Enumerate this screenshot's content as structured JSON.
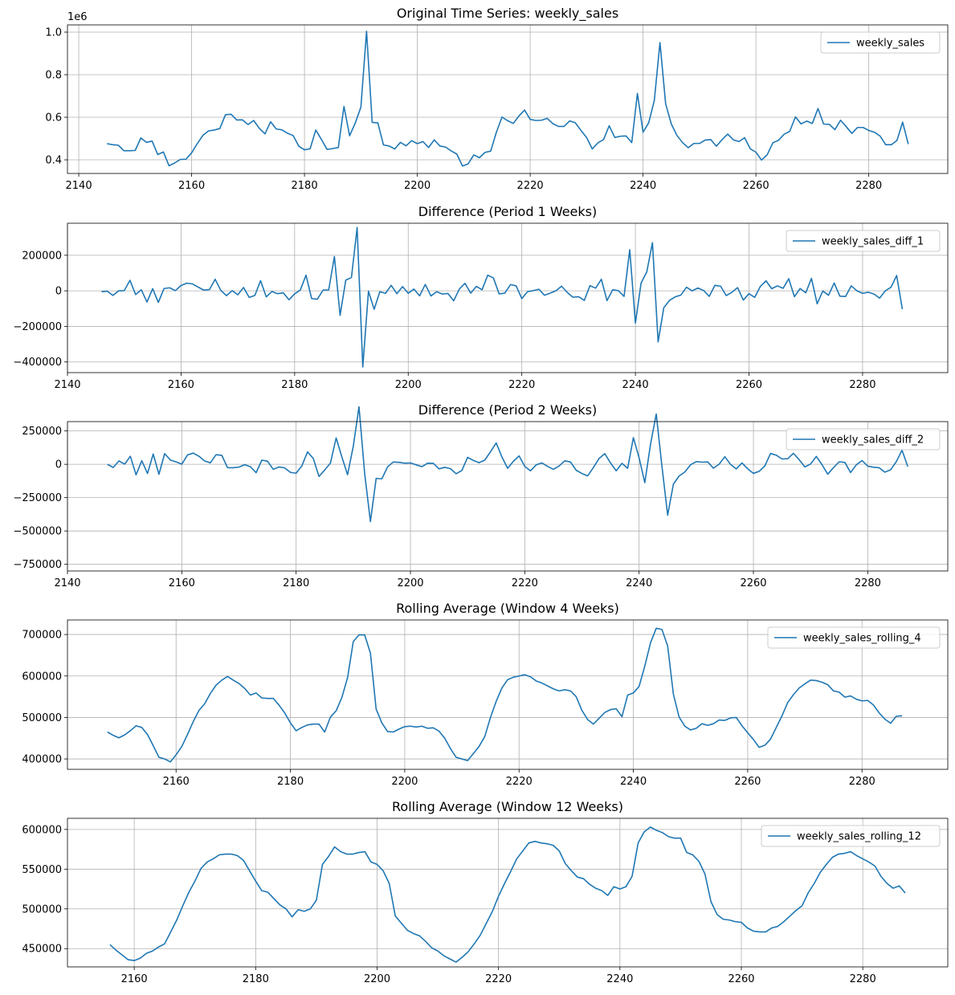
{
  "chart_data": [
    {
      "type": "line",
      "title": "Original Time Series: weekly_sales",
      "offset_label": "1e6",
      "xlim": [
        2138,
        2294
      ],
      "xticks": [
        2140,
        2160,
        2180,
        2200,
        2220,
        2240,
        2260,
        2280
      ],
      "ylim": [
        0.336,
        1.034
      ],
      "yticks": [
        0.4,
        0.6,
        0.8,
        1.0
      ],
      "ytick_labels": [
        "0.4",
        "0.6",
        "0.8",
        "1.0"
      ],
      "legend": "top-right",
      "series": [
        {
          "name": "weekly_sales",
          "x_start": 2145,
          "values": [
            0.476,
            0.471,
            0.469,
            0.443,
            0.443,
            0.444,
            0.503,
            0.482,
            0.488,
            0.425,
            0.437,
            0.372,
            0.385,
            0.402,
            0.403,
            0.433,
            0.476,
            0.515,
            0.536,
            0.54,
            0.547,
            0.612,
            0.614,
            0.587,
            0.588,
            0.566,
            0.585,
            0.548,
            0.522,
            0.579,
            0.545,
            0.541,
            0.525,
            0.514,
            0.464,
            0.447,
            0.452,
            0.54,
            0.496,
            0.449,
            0.453,
            0.458,
            0.651,
            0.513,
            0.573,
            0.648,
            1.004,
            0.576,
            0.574,
            0.47,
            0.465,
            0.451,
            0.482,
            0.466,
            0.49,
            0.476,
            0.486,
            0.458,
            0.494,
            0.465,
            0.46,
            0.442,
            0.427,
            0.371,
            0.381,
            0.423,
            0.41,
            0.435,
            0.441,
            0.529,
            0.601,
            0.584,
            0.571,
            0.606,
            0.634,
            0.59,
            0.585,
            0.586,
            0.595,
            0.57,
            0.557,
            0.557,
            0.583,
            0.574,
            0.538,
            0.505,
            0.451,
            0.48,
            0.495,
            0.56,
            0.505,
            0.511,
            0.512,
            0.481,
            0.712,
            0.53,
            0.574,
            0.68,
            0.951,
            0.664,
            0.569,
            0.515,
            0.481,
            0.457,
            0.477,
            0.477,
            0.493,
            0.495,
            0.464,
            0.495,
            0.521,
            0.494,
            0.486,
            0.504,
            0.452,
            0.436,
            0.399,
            0.424,
            0.48,
            0.492,
            0.52,
            0.534,
            0.602,
            0.569,
            0.582,
            0.571,
            0.641,
            0.568,
            0.567,
            0.542,
            0.586,
            0.556,
            0.524,
            0.552,
            0.552,
            0.538,
            0.53,
            0.512,
            0.471,
            0.471,
            0.491,
            0.577,
            0.474
          ]
        }
      ]
    },
    {
      "type": "line",
      "title": "Difference (Period 1 Weeks)",
      "xlim": [
        2140,
        2295
      ],
      "xticks": [
        2140,
        2160,
        2180,
        2200,
        2220,
        2240,
        2260,
        2280
      ],
      "ylim": [
        -460000,
        380000
      ],
      "yticks": [
        -400000,
        -200000,
        0,
        200000
      ],
      "ytick_labels": [
        "−400000",
        "−200000",
        "0",
        "200000"
      ],
      "legend": "top-right",
      "series": [
        {
          "name": "weekly_sales_diff_1",
          "x_start": 2146,
          "values": [
            -5000,
            -2000,
            -26000,
            0,
            1000,
            59000,
            -21000,
            6000,
            -63000,
            12000,
            -65000,
            13000,
            17000,
            1000,
            30000,
            43000,
            39000,
            21000,
            4000,
            7000,
            65000,
            2000,
            -27000,
            1000,
            -22000,
            19000,
            -37000,
            -26000,
            57000,
            -34000,
            -4000,
            -16000,
            -11000,
            -50000,
            -17000,
            5000,
            88000,
            -44000,
            -47000,
            4000,
            5000,
            193000,
            -138000,
            60000,
            75000,
            356000,
            -428000,
            -2000,
            -104000,
            -5000,
            -14000,
            31000,
            -16000,
            24000,
            -14000,
            10000,
            -28000,
            36000,
            -29000,
            -5000,
            -18000,
            -15000,
            -56000,
            10000,
            42000,
            -13000,
            25000,
            6000,
            88000,
            72000,
            -17000,
            -13000,
            35000,
            28000,
            -44000,
            -5000,
            1000,
            9000,
            -25000,
            -13000,
            0,
            26000,
            -9000,
            -36000,
            -33000,
            -54000,
            29000,
            15000,
            65000,
            -55000,
            6000,
            1000,
            -31000,
            231000,
            -182000,
            44000,
            106000,
            271000,
            -287000,
            -95000,
            -54000,
            -34000,
            -24000,
            20000,
            0,
            16000,
            2000,
            -31000,
            31000,
            26000,
            -27000,
            -8000,
            18000,
            -52000,
            -16000,
            -37000,
            25000,
            56000,
            12000,
            28000,
            14000,
            68000,
            -33000,
            13000,
            -11000,
            70000,
            -73000,
            -1000,
            -25000,
            44000,
            -30000,
            -32000,
            28000,
            0,
            -14000,
            -8000,
            -18000,
            -41000,
            0,
            20000,
            86000,
            -103000
          ]
        }
      ]
    },
    {
      "type": "line",
      "title": "Difference (Period 2 Weeks)",
      "xlim": [
        2140,
        2294
      ],
      "xticks": [
        2140,
        2160,
        2180,
        2200,
        2220,
        2240,
        2260,
        2280
      ],
      "ylim": [
        -800000,
        320000
      ],
      "yticks": [
        -750000,
        -500000,
        -250000,
        0,
        250000
      ],
      "ytick_labels": [
        "−750000",
        "−500000",
        "−250000",
        "0",
        "250000"
      ],
      "legend": "top-right",
      "series": [
        {
          "name": "weekly_sales_diff_2",
          "x_start": 2147,
          "values": [
            0,
            -24000,
            25000,
            1000,
            60000,
            -79000,
            27000,
            -69000,
            77000,
            -75000,
            80000,
            32000,
            18000,
            1000,
            70000,
            84000,
            60000,
            25000,
            11000,
            72000,
            67000,
            -25000,
            -26000,
            -21000,
            -3000,
            -18000,
            -63000,
            31000,
            23000,
            -38000,
            -20000,
            -27000,
            -61000,
            -67000,
            -12000,
            93000,
            44000,
            -91000,
            -43000,
            9000,
            198000,
            55000,
            -78000,
            135000,
            431000,
            -72000,
            -430000,
            -106000,
            -109000,
            -19000,
            17000,
            15000,
            8000,
            10000,
            -4000,
            -18000,
            8000,
            7000,
            -34000,
            -23000,
            -33000,
            -71000,
            -46000,
            52000,
            29000,
            12000,
            31000,
            94000,
            160000,
            55000,
            -30000,
            22000,
            63000,
            -16000,
            -49000,
            -4000,
            10000,
            -16000,
            -38000,
            -13000,
            26000,
            17000,
            -45000,
            -69000,
            -87000,
            -25000,
            44000,
            80000,
            10000,
            -49000,
            7000,
            -30000,
            200000,
            49000,
            -138000,
            150000,
            377000,
            -16000,
            -382000,
            -149000,
            -88000,
            -58000,
            -4000,
            20000,
            16000,
            18000,
            -29000,
            0,
            57000,
            -1000,
            -35000,
            10000,
            -34000,
            -68000,
            -53000,
            -12000,
            81000,
            68000,
            40000,
            42000,
            82000,
            35000,
            -20000,
            2000,
            59000,
            -3000,
            -74000,
            -26000,
            19000,
            14000,
            -62000,
            -4000,
            28000,
            -14000,
            -22000,
            -26000,
            -59000,
            -41000,
            20000,
            106000,
            -17000
          ]
        }
      ]
    },
    {
      "type": "line",
      "title": "Rolling Average (Window 4 Weeks)",
      "xlim": [
        2141,
        2295
      ],
      "xticks": [
        2160,
        2180,
        2200,
        2220,
        2240,
        2260,
        2280
      ],
      "ylim": [
        375000,
        735000
      ],
      "yticks": [
        400000,
        500000,
        600000,
        700000
      ],
      "ytick_labels": [
        "400000",
        "500000",
        "600000",
        "700000"
      ],
      "legend": "top-right",
      "series": [
        {
          "name": "weekly_sales_rolling_4",
          "x_start": 2148,
          "values": [
            465000,
            457000,
            451000,
            458000,
            468000,
            480000,
            476000,
            459000,
            432000,
            404000,
            400000,
            393000,
            410000,
            430000,
            459000,
            490000,
            517000,
            533000,
            558000,
            578000,
            590000,
            599000,
            590000,
            582000,
            570000,
            554000,
            559000,
            547000,
            546000,
            546000,
            530000,
            511000,
            487000,
            468000,
            476000,
            482000,
            484000,
            484000,
            465000,
            501000,
            516000,
            548000,
            596000,
            683000,
            699000,
            699000,
            655000,
            520000,
            487000,
            466000,
            465000,
            472000,
            478000,
            479000,
            477000,
            479000,
            474000,
            475000,
            467000,
            450000,
            425000,
            404000,
            400000,
            396000,
            413000,
            430000,
            454000,
            500000,
            539000,
            571000,
            591000,
            597000,
            600000,
            603000,
            598000,
            588000,
            583000,
            576000,
            569000,
            564000,
            567000,
            564000,
            550000,
            517000,
            495000,
            484000,
            498000,
            512000,
            519000,
            521000,
            502000,
            554000,
            559000,
            575000,
            624000,
            680000,
            715000,
            712000,
            672000,
            556000,
            501000,
            479000,
            470000,
            474000,
            485000,
            481000,
            485000,
            494000,
            493000,
            499000,
            500000,
            480000,
            463000,
            447000,
            428000,
            433000,
            448000,
            476000,
            504000,
            536000,
            555000,
            571000,
            581000,
            590000,
            589000,
            585000,
            579000,
            564000,
            561000,
            549000,
            552000,
            544000,
            540000,
            541000,
            530000,
            511000,
            496000,
            486000,
            503000,
            504000
          ]
        }
      ]
    },
    {
      "type": "line",
      "title": "Rolling Average (Window 12 Weeks)",
      "xlim": [
        2149,
        2294
      ],
      "xticks": [
        2160,
        2180,
        2200,
        2220,
        2240,
        2260,
        2280
      ],
      "ylim": [
        427000,
        614000
      ],
      "yticks": [
        450000,
        500000,
        550000,
        600000
      ],
      "ytick_labels": [
        "450000",
        "500000",
        "550000",
        "600000"
      ],
      "legend": "top-right",
      "series": [
        {
          "name": "weekly_sales_rolling_12",
          "x_start": 2156,
          "values": [
            455000,
            448000,
            442000,
            436000,
            435000,
            438000,
            444000,
            447000,
            452000,
            456000,
            471000,
            486000,
            504000,
            521000,
            535000,
            551000,
            559000,
            563000,
            568000,
            569000,
            569000,
            567000,
            561000,
            548000,
            535000,
            523000,
            521000,
            513000,
            505000,
            500000,
            490000,
            499000,
            497000,
            500000,
            511000,
            556000,
            566000,
            578000,
            572000,
            569000,
            569000,
            571000,
            572000,
            559000,
            556000,
            548000,
            532000,
            491000,
            482000,
            473000,
            469000,
            466000,
            459000,
            451000,
            447000,
            441000,
            437000,
            433000,
            439000,
            446000,
            456000,
            467000,
            482000,
            497000,
            516000,
            532000,
            547000,
            563000,
            573000,
            583000,
            585000,
            583000,
            582000,
            580000,
            573000,
            557000,
            548000,
            540000,
            538000,
            531000,
            526000,
            523000,
            517000,
            528000,
            525000,
            528000,
            541000,
            583000,
            597000,
            603000,
            599000,
            596000,
            591000,
            589000,
            589000,
            571000,
            568000,
            560000,
            544000,
            509000,
            493000,
            487000,
            486000,
            484000,
            483000,
            476000,
            472000,
            471000,
            471000,
            476000,
            478000,
            484000,
            491000,
            498000,
            504000,
            520000,
            532000,
            546000,
            556000,
            565000,
            569000,
            570000,
            572000,
            567000,
            563000,
            559000,
            554000,
            541000,
            532000,
            526000,
            529000,
            520000
          ]
        }
      ]
    }
  ]
}
